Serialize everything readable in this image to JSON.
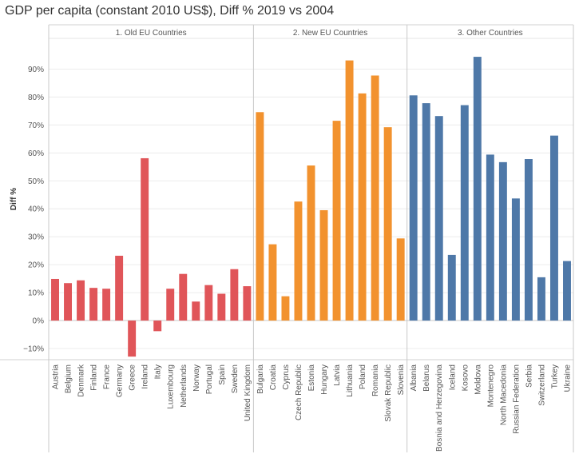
{
  "chart_data": {
    "type": "bar",
    "title": "GDP per capita (constant 2010 US$), Diff % 2019 vs 2004",
    "ylabel": "Diff %",
    "xlabel": "",
    "ylim": [
      -0.14,
      1.01
    ],
    "yticks": [
      {
        "value": 0.9,
        "label": "90%"
      },
      {
        "value": 0.8,
        "label": "80%"
      },
      {
        "value": 0.7,
        "label": "70%"
      },
      {
        "value": 0.6,
        "label": "60%"
      },
      {
        "value": 0.5,
        "label": "50%"
      },
      {
        "value": 0.4,
        "label": "40%"
      },
      {
        "value": 0.3,
        "label": "30%"
      },
      {
        "value": 0.2,
        "label": "20%"
      },
      {
        "value": 0.1,
        "label": "10%"
      },
      {
        "value": 0.0,
        "label": "0%"
      },
      {
        "value": -0.1,
        "label": "−10%"
      }
    ],
    "grid": true,
    "panels": [
      {
        "name": "1. Old EU Countries",
        "color": "#e05559",
        "categories": [
          "Austria",
          "Belgium",
          "Denmark",
          "Finland",
          "France",
          "Germany",
          "Greece",
          "Ireland",
          "Italy",
          "Luxembourg",
          "Netherlands",
          "Norway",
          "Portugal",
          "Spain",
          "Sweden",
          "United Kingdom"
        ],
        "values": [
          0.149,
          0.134,
          0.144,
          0.117,
          0.114,
          0.232,
          -0.129,
          0.581,
          -0.038,
          0.114,
          0.167,
          0.068,
          0.127,
          0.096,
          0.184,
          0.123
        ]
      },
      {
        "name": "2. New EU Countries",
        "color": "#f2922e",
        "categories": [
          "Bulgaria",
          "Croatia",
          "Cyprus",
          "Czech Republic",
          "Estonia",
          "Hungary",
          "Latvia",
          "Lithuania",
          "Poland",
          "Romania",
          "Slovak Republic",
          "Slovenia"
        ],
        "values": [
          0.746,
          0.273,
          0.087,
          0.426,
          0.555,
          0.395,
          0.715,
          0.931,
          0.813,
          0.877,
          0.692,
          0.294
        ]
      },
      {
        "name": "3. Other Countries",
        "color": "#4e78a8",
        "categories": [
          "Albania",
          "Belarus",
          "Bosnia and Herzegovina",
          "Iceland",
          "Kosovo",
          "Moldova",
          "Montenegro",
          "North Macedonia",
          "Russian Federation",
          "Serbia",
          "Switzerland",
          "Turkey",
          "Ukraine"
        ],
        "values": [
          0.806,
          0.778,
          0.732,
          0.235,
          0.771,
          0.944,
          0.594,
          0.567,
          0.437,
          0.578,
          0.155,
          0.662,
          0.213
        ]
      }
    ]
  }
}
